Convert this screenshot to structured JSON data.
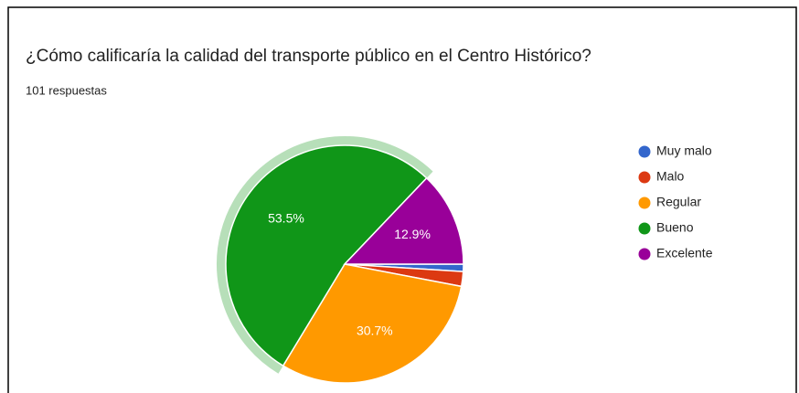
{
  "chart_data": {
    "type": "pie",
    "title": "¿Cómo calificaría la calidad del transporte público en el Centro Histórico?",
    "subtitle": "101 respuestas",
    "categories": [
      "Muy malo",
      "Malo",
      "Regular",
      "Bueno",
      "Excelente"
    ],
    "values": [
      1.0,
      2.0,
      30.7,
      53.5,
      12.9
    ],
    "value_labels": [
      null,
      null,
      "30.7%",
      "53.5%",
      "12.9%"
    ],
    "colors": [
      "#3366cc",
      "#dc3912",
      "#ff9900",
      "#109618",
      "#990099"
    ],
    "highlighted": "Bueno",
    "legend": "right"
  }
}
